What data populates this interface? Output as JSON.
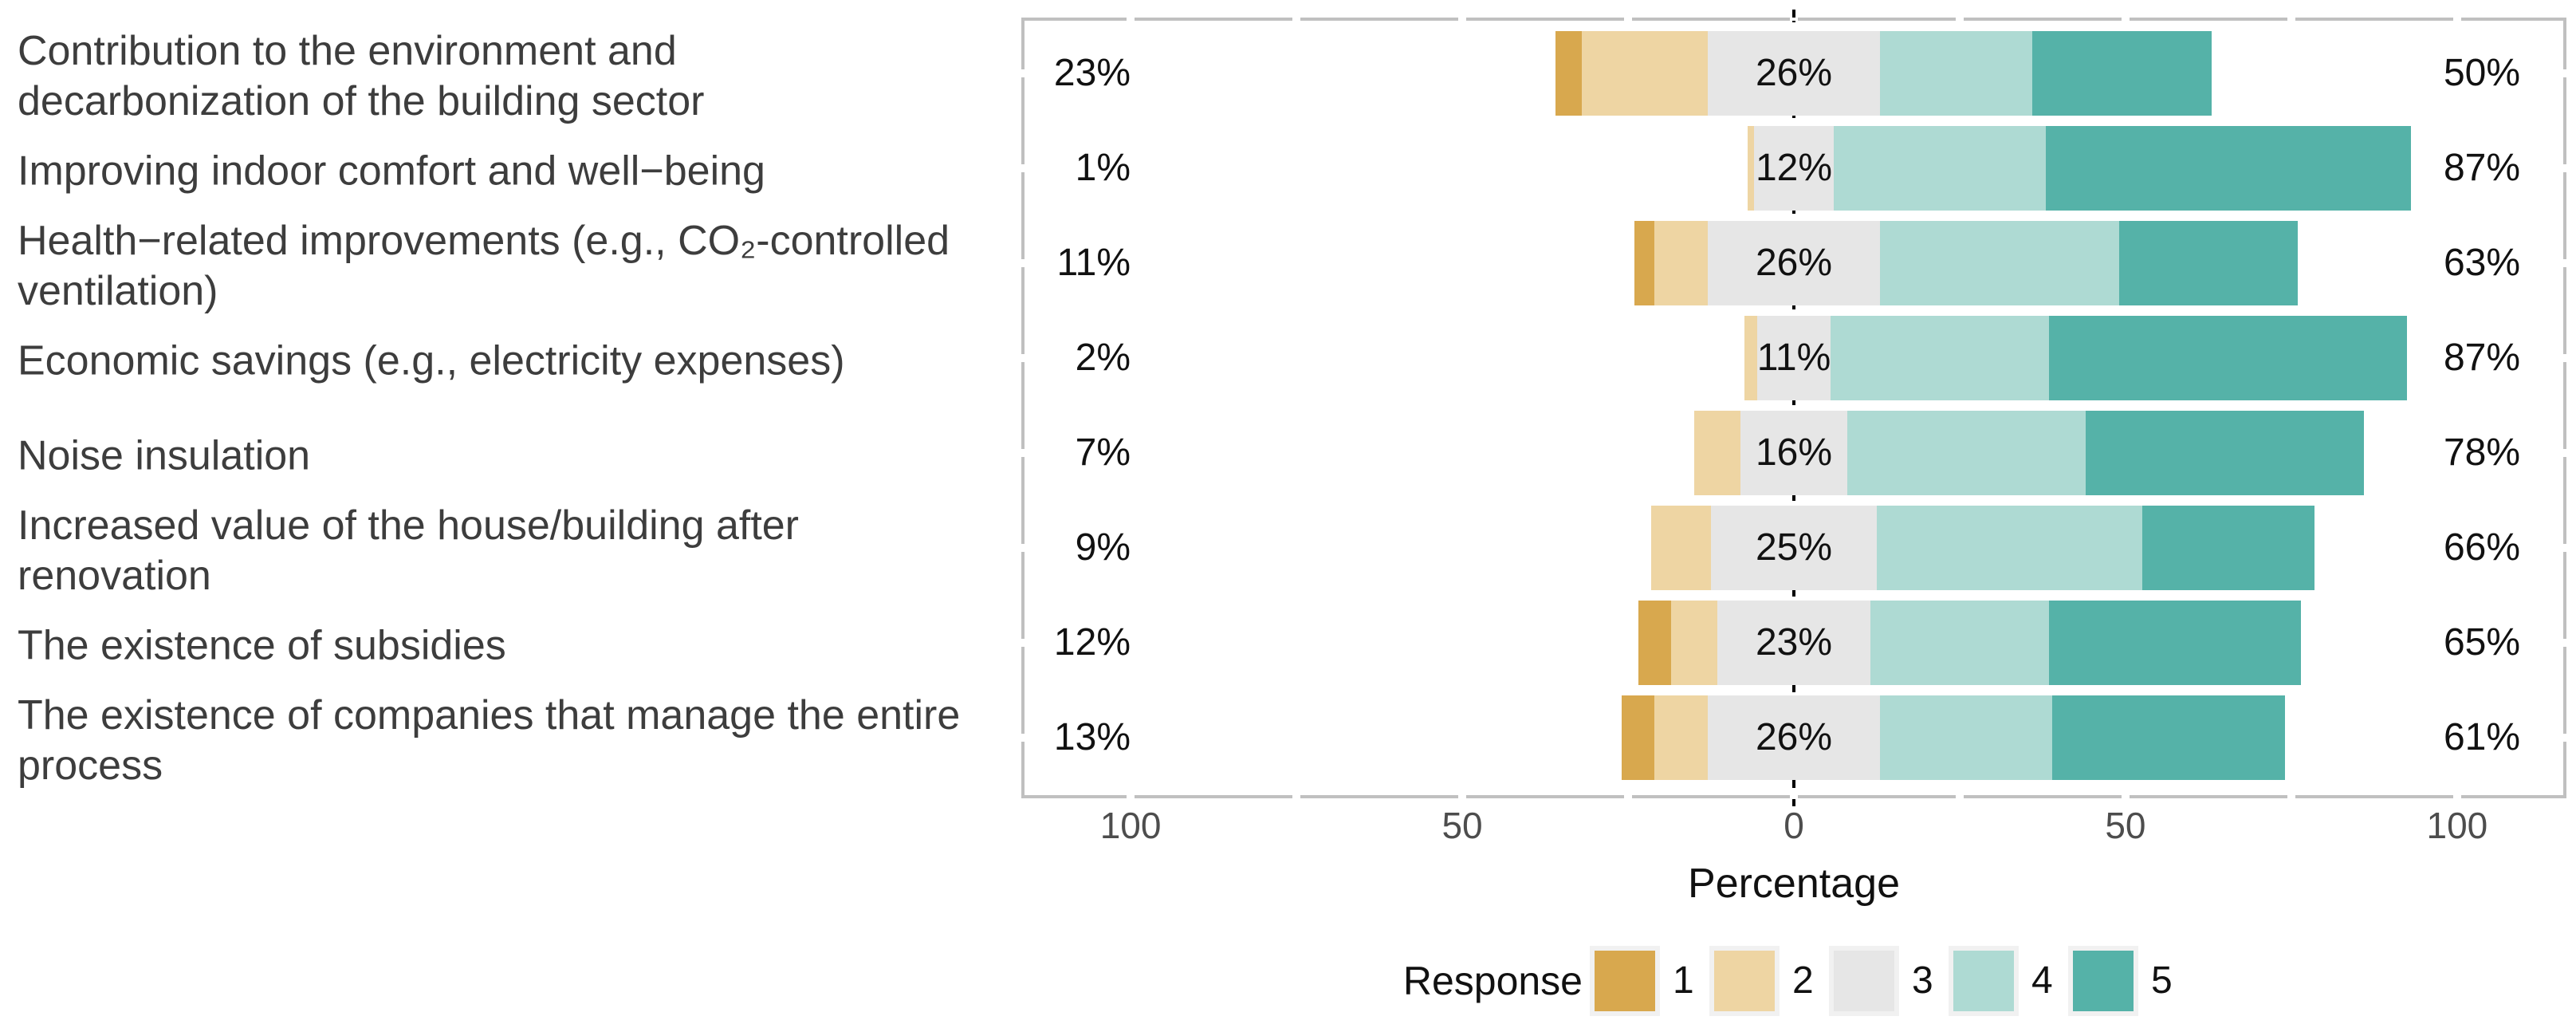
{
  "chart_data": {
    "type": "bar",
    "variant": "diverging-stacked-likert",
    "orientation": "horizontal",
    "title": "",
    "xlabel": "Percentage",
    "xlim": [
      -116,
      116
    ],
    "grid": false,
    "zero_line": "dashed-black",
    "axis_ticks": [
      {
        "label": "100",
        "unit": -100
      },
      {
        "label": "50",
        "unit": -50
      },
      {
        "label": "0",
        "unit": 0
      },
      {
        "label": "50",
        "unit": 50
      },
      {
        "label": "100",
        "unit": 100
      }
    ],
    "minor_notch_units": [
      -100,
      -75,
      -50,
      -25,
      0,
      25,
      50,
      75,
      100
    ],
    "legend_title": "Response",
    "legend_position": "bottom",
    "responses": [
      "1",
      "2",
      "3",
      "4",
      "5"
    ],
    "colors": {
      "1": "#d8a84e",
      "2": "#eed5a3",
      "3": "#e6e6e6",
      "4": "#aedad3",
      "5": "#55b2a8"
    },
    "rows": [
      {
        "category": "Contribution to the environment and decarbonization of the building sector",
        "label_lines": "Contribution to the environment and\ndecarbonization of the building sector",
        "values": {
          "1": 4,
          "2": 19,
          "3": 26,
          "4": 23,
          "5": 27
        },
        "left_label": "23%",
        "center_label": "26%",
        "right_label": "50%"
      },
      {
        "category": "Improving indoor comfort and well−being",
        "label_lines": "Improving indoor comfort and well−being",
        "values": {
          "1": 0,
          "2": 1,
          "3": 12,
          "4": 32,
          "5": 55
        },
        "left_label": "1%",
        "center_label": "12%",
        "right_label": "87%"
      },
      {
        "category": "Health−related improvements (e.g., CO₂-controlled ventilation)",
        "label_lines": "Health−related improvements (e.g., CO₂-controlled\nventilation)",
        "values": {
          "1": 3,
          "2": 8,
          "3": 26,
          "4": 36,
          "5": 27
        },
        "left_label": "11%",
        "center_label": "26%",
        "right_label": "63%"
      },
      {
        "category": "Economic savings (e.g., electricity expenses)",
        "label_lines": "Economic savings (e.g., electricity expenses)",
        "values": {
          "1": 0,
          "2": 2,
          "3": 11,
          "4": 33,
          "5": 54
        },
        "left_label": "2%",
        "center_label": "11%",
        "right_label": "87%"
      },
      {
        "category": "Noise insulation",
        "label_lines": "Noise insulation",
        "values": {
          "1": 0,
          "2": 7,
          "3": 16,
          "4": 36,
          "5": 42
        },
        "left_label": "7%",
        "center_label": "16%",
        "right_label": "78%"
      },
      {
        "category": "Increased value of the house/building after renovation",
        "label_lines": "Increased value of the house/building after\nrenovation",
        "values": {
          "1": 0,
          "2": 9,
          "3": 25,
          "4": 40,
          "5": 26
        },
        "left_label": "9%",
        "center_label": "25%",
        "right_label": "66%"
      },
      {
        "category": "The existence of subsidies",
        "label_lines": "The existence of subsidies",
        "values": {
          "1": 5,
          "2": 7,
          "3": 23,
          "4": 27,
          "5": 38
        },
        "left_label": "12%",
        "center_label": "23%",
        "right_label": "65%"
      },
      {
        "category": "The existence of companies that manage the entire process",
        "label_lines": "The existence of companies that manage the entire\nprocess",
        "values": {
          "1": 5,
          "2": 8,
          "3": 26,
          "4": 26,
          "5": 35
        },
        "left_label": "13%",
        "center_label": "26%",
        "right_label": "61%"
      }
    ]
  }
}
